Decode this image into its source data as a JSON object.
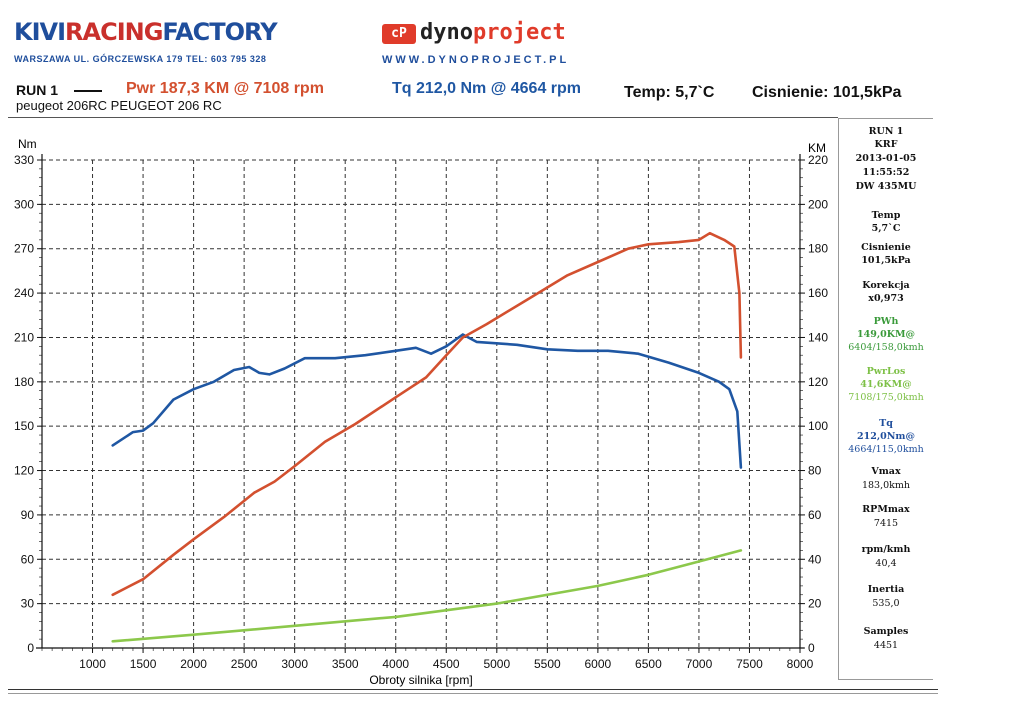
{
  "logo_left": {
    "part1": "KIVI",
    "part2": "RACING",
    "part3": "FACTORY",
    "sub": "WARSZAWA UL. GÓRCZEWSKA 179    TEL: 603 795 328"
  },
  "logo_right": {
    "badge": "cP",
    "part1": "dyno",
    "part2": "project",
    "sub": "WWW.DYNOPROJECT.PL"
  },
  "header": {
    "run": "RUN 1",
    "pwr": "Pwr  187,3 KM @ 7108 rpm",
    "tq": "Tq 212,0 Nm @ 4664 rpm",
    "temp": "Temp: 5,7`C",
    "press": "Cisnienie: 101,5kPa",
    "subtitle": "peugeot 206RC PEUGEOT 206 RC"
  },
  "sidebar": {
    "run": "RUN 1",
    "code": "KRF",
    "date": "2013-01-05",
    "time": "11:55:52",
    "dyno": "DW 435MU",
    "temp_label": "Temp",
    "temp_value": "5,7`C",
    "press_label": "Cisnienie",
    "press_value": "101,5kPa",
    "kor_label": "Korekcja",
    "kor_value": "x0,973",
    "pwh_label": "PWh",
    "pwh_value": "149,0KM@",
    "pwh_at": "6404/158,0kmh",
    "pwrlos_label": "PwrLos",
    "pwrlos_value": "41,6KM@",
    "pwrlos_at": "7108/175,0kmh",
    "tq_label": "Tq",
    "tq_value": "212,0Nm@",
    "tq_at": "4664/115,0kmh",
    "vmax_label": "Vmax",
    "vmax_value": "183,0kmh",
    "rpmmax_label": "RPMmax",
    "rpmmax_value": "7415",
    "rpmkmh_label": "rpm/kmh",
    "rpmkmh_value": "40,4",
    "inertia_label": "Inertia",
    "inertia_value": "535,0",
    "samples_label": "Samples",
    "samples_value": "4451"
  },
  "colors": {
    "power": "#d3502f",
    "torque": "#1f57a3",
    "loss": "#8cc84b"
  },
  "chart_data": {
    "type": "line",
    "xlabel": "Obroty silnika [rpm]",
    "ylabel_left": "Nm",
    "ylabel_right": "KM",
    "xlim": [
      500,
      8000
    ],
    "ylim_left": [
      0,
      330
    ],
    "ylim_right": [
      0,
      220
    ],
    "x_ticks": [
      "1000",
      "1500",
      "2000",
      "2500",
      "3000",
      "3500",
      "4000",
      "4500",
      "5000",
      "5500",
      "6000",
      "6500",
      "7000",
      "7500",
      "8000"
    ],
    "yl_ticks": [
      "0",
      "30",
      "60",
      "90",
      "120",
      "150",
      "180",
      "210",
      "240",
      "270",
      "300",
      "330"
    ],
    "yr_ticks": [
      "0",
      "20",
      "40",
      "60",
      "80",
      "100",
      "120",
      "140",
      "160",
      "180",
      "200",
      "220"
    ],
    "grid": true,
    "series": [
      {
        "name": "Tq",
        "axis": "left",
        "color": "#1f57a3",
        "x": [
          1200,
          1400,
          1500,
          1600,
          1800,
          2000,
          2200,
          2400,
          2550,
          2650,
          2750,
          2900,
          3100,
          3400,
          3700,
          4000,
          4200,
          4350,
          4500,
          4664,
          4800,
          5200,
          5500,
          5800,
          6100,
          6400,
          6700,
          7000,
          7200,
          7300,
          7380,
          7415
        ],
        "y": [
          137,
          146,
          147,
          152,
          168,
          175,
          180,
          188,
          190,
          186,
          185,
          189,
          196,
          196,
          198,
          201,
          203,
          199,
          204,
          212,
          207,
          205,
          202,
          201,
          201,
          199,
          193,
          186,
          180,
          175,
          160,
          122
        ]
      },
      {
        "name": "Pwr",
        "axis": "right",
        "color": "#d3502f",
        "x": [
          1200,
          1500,
          1800,
          2000,
          2300,
          2600,
          2800,
          3000,
          3300,
          3600,
          4000,
          4300,
          4500,
          4664,
          4900,
          5300,
          5700,
          6000,
          6300,
          6500,
          6800,
          7000,
          7108,
          7250,
          7350,
          7400,
          7415
        ],
        "y": [
          24,
          31,
          42,
          49,
          59,
          70,
          75,
          82,
          93,
          101,
          113,
          122,
          132,
          140,
          146,
          157,
          168,
          174,
          180,
          182,
          183,
          184,
          187,
          184,
          181,
          160,
          131
        ]
      },
      {
        "axis": "right",
        "color": "#8cc84b",
        "x": [
          1200,
          2000,
          3000,
          4000,
          5000,
          6000,
          6500,
          7000,
          7415
        ],
        "y": [
          3,
          6,
          10,
          14,
          20,
          28,
          33,
          39,
          44
        ]
      }
    ]
  }
}
